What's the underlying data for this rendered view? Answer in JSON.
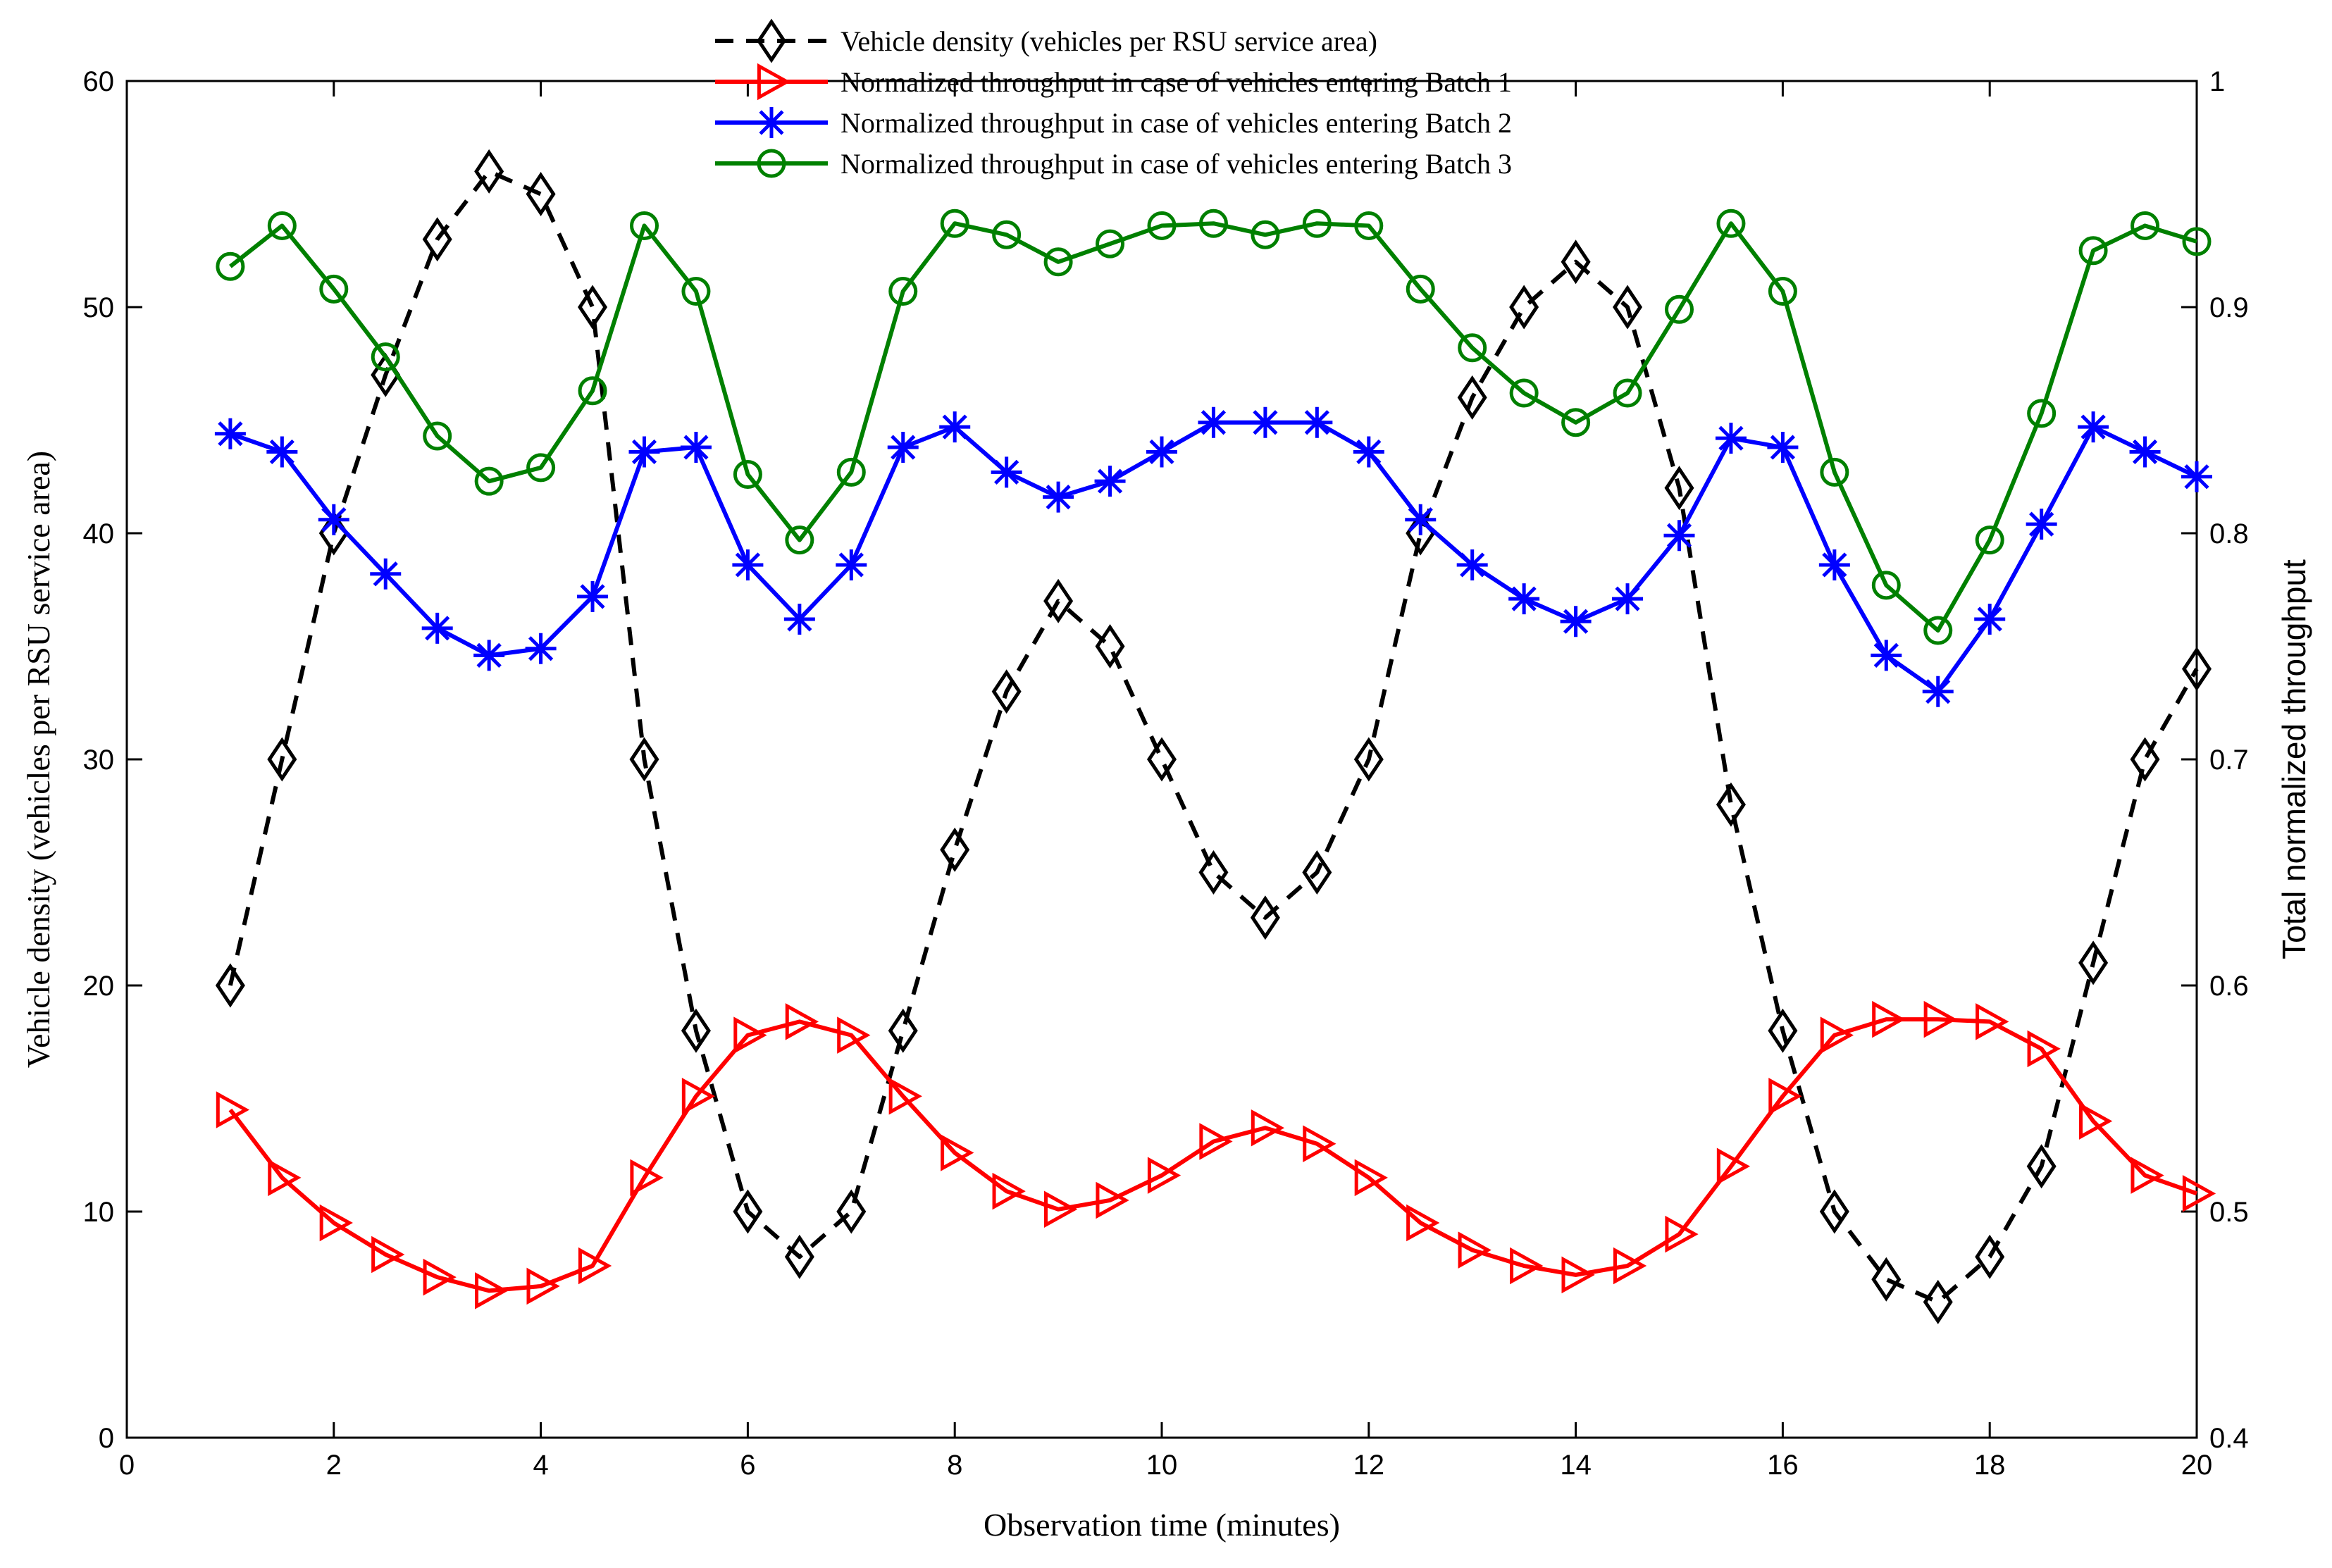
{
  "chart_data": {
    "type": "line",
    "xlabel": "Observation time (minutes)",
    "ylabel_left": "Vehicle density (vehicles per RSU service area)",
    "ylabel_right": "Total normalized throughput",
    "xlim": [
      0,
      20
    ],
    "ylim_left": [
      0,
      60
    ],
    "ylim_right": [
      0.4,
      1.0
    ],
    "x_ticks": [
      0,
      2,
      4,
      6,
      8,
      10,
      12,
      14,
      16,
      18,
      20
    ],
    "y_left_ticks": [
      0,
      10,
      20,
      30,
      40,
      50,
      60
    ],
    "y_right_ticks": [
      0.4,
      0.5,
      0.6,
      0.7,
      0.8,
      0.9,
      1
    ],
    "x_tick_labels": [
      "0",
      "2",
      "4",
      "6",
      "8",
      "10",
      "12",
      "14",
      "16",
      "18",
      "20"
    ],
    "y_left_tick_labels": [
      "0",
      "10",
      "20",
      "30",
      "40",
      "50",
      "60"
    ],
    "y_right_tick_labels": [
      "0.4",
      "0.5",
      "0.6",
      "0.7",
      "0.8",
      "0.9",
      "1"
    ],
    "grid": false,
    "legend_position": "top-center",
    "x": [
      1,
      1.5,
      2,
      2.5,
      3,
      3.5,
      4,
      4.5,
      5,
      5.5,
      6,
      6.5,
      7,
      7.5,
      8,
      8.5,
      9,
      9.5,
      10,
      10.5,
      11,
      11.5,
      12,
      12.5,
      13,
      13.5,
      14,
      14.5,
      15,
      15.5,
      16,
      16.5,
      17,
      17.5,
      18,
      18.5,
      19,
      19.5,
      20
    ],
    "series": [
      {
        "name": "Vehicle density (vehicles per RSU service area)",
        "axis": "left",
        "color": "#000000",
        "marker": "diamond",
        "dashed": true,
        "values": [
          20,
          30,
          40,
          47,
          53,
          56,
          55,
          50,
          30,
          18,
          10,
          8,
          10,
          18,
          26,
          33,
          37,
          35,
          30,
          25,
          23,
          25,
          30,
          40,
          46,
          50,
          52,
          50,
          42,
          28,
          18,
          10,
          7,
          6,
          8,
          12,
          21,
          30,
          34
        ]
      },
      {
        "name": "Normalized throughput in case of vehicles entering Batch 1",
        "axis": "right",
        "color": "#ff0000",
        "marker": "triangle-right",
        "dashed": false,
        "values": [
          0.545,
          0.515,
          0.495,
          0.481,
          0.471,
          0.465,
          0.467,
          0.476,
          0.515,
          0.551,
          0.578,
          0.584,
          0.578,
          0.551,
          0.526,
          0.509,
          0.501,
          0.505,
          0.516,
          0.531,
          0.537,
          0.53,
          0.515,
          0.495,
          0.483,
          0.476,
          0.472,
          0.476,
          0.49,
          0.52,
          0.551,
          0.578,
          0.585,
          0.585,
          0.584,
          0.572,
          0.54,
          0.516,
          0.508
        ]
      },
      {
        "name": "Normalized throughput in case of vehicles entering Batch 2",
        "axis": "right",
        "color": "#0000ff",
        "marker": "asterisk",
        "dashed": false,
        "values": [
          0.844,
          0.836,
          0.806,
          0.782,
          0.758,
          0.746,
          0.749,
          0.772,
          0.836,
          0.838,
          0.786,
          0.762,
          0.786,
          0.838,
          0.847,
          0.827,
          0.816,
          0.823,
          0.836,
          0.849,
          0.849,
          0.849,
          0.836,
          0.806,
          0.786,
          0.771,
          0.761,
          0.771,
          0.799,
          0.842,
          0.838,
          0.786,
          0.746,
          0.73,
          0.762,
          0.804,
          0.847,
          0.836,
          0.825
        ]
      },
      {
        "name": "Normalized throughput in case of vehicles entering Batch 3",
        "axis": "right",
        "color": "#008000",
        "marker": "circle",
        "dashed": false,
        "values": [
          0.918,
          0.936,
          0.908,
          0.878,
          0.843,
          0.823,
          0.829,
          0.863,
          0.936,
          0.907,
          0.826,
          0.797,
          0.827,
          0.907,
          0.937,
          0.932,
          0.92,
          0.928,
          0.936,
          0.937,
          0.932,
          0.937,
          0.936,
          0.908,
          0.882,
          0.862,
          0.849,
          0.862,
          0.899,
          0.937,
          0.907,
          0.827,
          0.777,
          0.757,
          0.797,
          0.853,
          0.925,
          0.936,
          0.929
        ]
      }
    ]
  }
}
